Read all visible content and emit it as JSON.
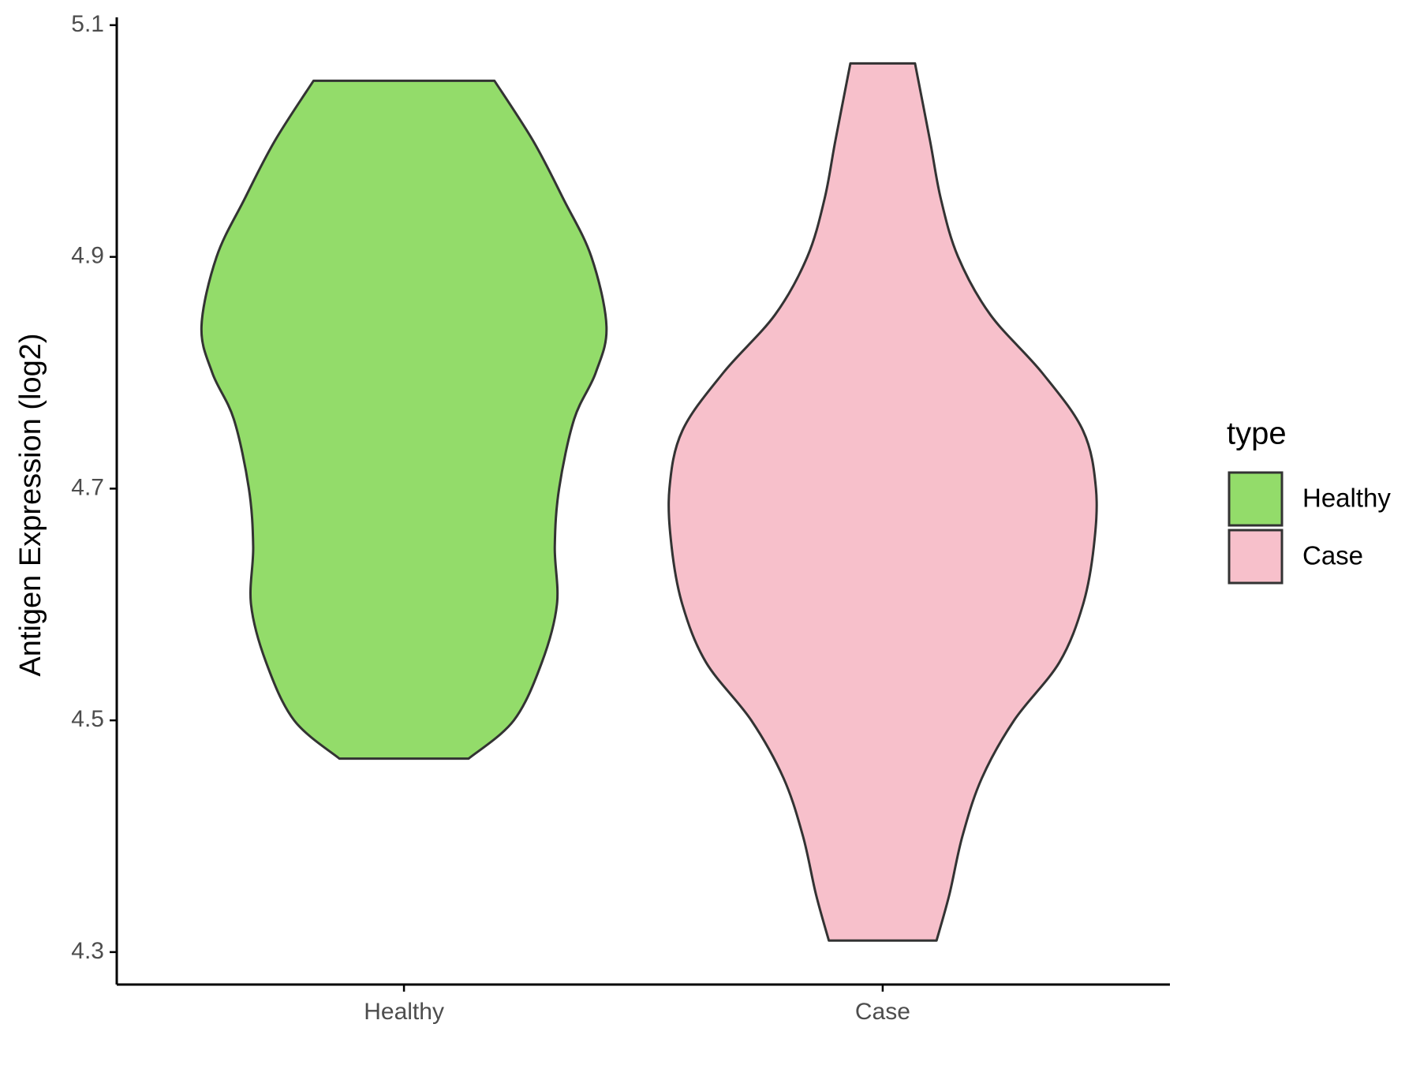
{
  "chart_data": {
    "type": "violin",
    "y_label": "Antigen Expression (log2)",
    "categories": [
      "Healthy",
      "Case"
    ],
    "ylim": [
      4.272,
      5.104
    ],
    "yticks": [
      {
        "value": 4.3,
        "label": "4.3"
      },
      {
        "value": 4.5,
        "label": "4.5"
      },
      {
        "value": 4.7,
        "label": "4.7"
      },
      {
        "value": 4.9,
        "label": "4.9"
      },
      {
        "value": 5.1,
        "label": "5.1"
      }
    ],
    "legend_title": "type",
    "legend_position": "right",
    "series": [
      {
        "name": "Healthy",
        "color": "#93dc6a",
        "y": [
          5.052,
          5.0,
          4.95,
          4.9,
          4.84,
          4.8,
          4.76,
          4.7,
          4.65,
          4.6,
          4.55,
          4.5,
          4.467
        ],
        "density": [
          0.42,
          0.6,
          0.74,
          0.87,
          0.94,
          0.89,
          0.79,
          0.72,
          0.7,
          0.71,
          0.64,
          0.51,
          0.3
        ]
      },
      {
        "name": "Case",
        "color": "#f7c0cb",
        "y": [
          5.067,
          5.0,
          4.95,
          4.9,
          4.85,
          4.8,
          4.75,
          4.7,
          4.65,
          4.6,
          4.55,
          4.5,
          4.45,
          4.4,
          4.35,
          4.31
        ],
        "density": [
          0.15,
          0.22,
          0.27,
          0.35,
          0.5,
          0.74,
          0.93,
          0.99,
          0.98,
          0.93,
          0.82,
          0.61,
          0.46,
          0.37,
          0.31,
          0.25
        ]
      }
    ]
  }
}
